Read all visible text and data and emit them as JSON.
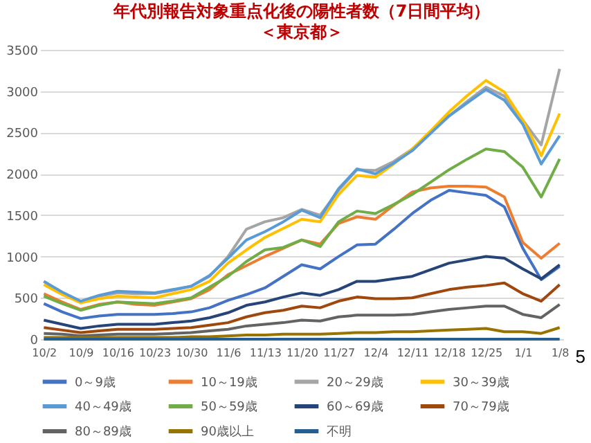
{
  "chart_data": {
    "type": "line",
    "title": "年代別報告対象重点化後の陽性者数（7日間平均）",
    "subtitle": "＜東京都＞",
    "categories": [
      "10/2",
      null,
      "10/9",
      null,
      "10/16",
      null,
      "10/23",
      null,
      "10/30",
      null,
      "11/6",
      null,
      "11/13",
      null,
      "11/20",
      null,
      "11/27",
      null,
      "12/4",
      null,
      "12/11",
      null,
      "12/18",
      null,
      "12/25",
      null,
      "1/1",
      null,
      "1/8"
    ],
    "ylim": [
      0,
      3500
    ],
    "yticks": [
      0,
      500,
      1000,
      1500,
      2000,
      2500,
      3000,
      3500
    ],
    "grid": "y",
    "legend": "bottom",
    "marker": "none",
    "line_style": "solid",
    "annotations": [
      "5"
    ],
    "series": [
      {
        "name": "0～9歳",
        "color": "#4472c4",
        "values": [
          430,
          330,
          250,
          280,
          300,
          300,
          300,
          310,
          330,
          380,
          470,
          540,
          620,
          760,
          900,
          850,
          1000,
          1140,
          1150,
          1330,
          1520,
          1680,
          1800,
          1770,
          1740,
          1600,
          1100,
          720,
          880
        ]
      },
      {
        "name": "10～19歳",
        "color": "#ed7d31",
        "values": [
          550,
          450,
          360,
          420,
          450,
          420,
          410,
          450,
          490,
          600,
          780,
          890,
          1000,
          1100,
          1200,
          1150,
          1400,
          1480,
          1450,
          1620,
          1780,
          1830,
          1850,
          1850,
          1840,
          1720,
          1170,
          980,
          1160
        ]
      },
      {
        "name": "20～29歳",
        "color": "#a5a5a5",
        "values": [
          700,
          560,
          450,
          520,
          560,
          550,
          550,
          590,
          640,
          760,
          1000,
          1330,
          1420,
          1470,
          1570,
          1500,
          1800,
          2050,
          2040,
          2150,
          2300,
          2500,
          2700,
          2880,
          3050,
          2940,
          2650,
          2350,
          3270
        ]
      },
      {
        "name": "30～39歳",
        "color": "#ffc000",
        "values": [
          660,
          540,
          440,
          490,
          520,
          510,
          500,
          550,
          600,
          700,
          920,
          1080,
          1230,
          1340,
          1450,
          1420,
          1750,
          1980,
          1960,
          2120,
          2300,
          2520,
          2750,
          2950,
          3130,
          2990,
          2650,
          2220,
          2730
        ]
      },
      {
        "name": "40～49歳",
        "color": "#5b9bd5",
        "values": [
          700,
          570,
          460,
          530,
          580,
          570,
          560,
          600,
          640,
          770,
          980,
          1200,
          1300,
          1420,
          1560,
          1470,
          1820,
          2060,
          2000,
          2130,
          2280,
          2490,
          2700,
          2860,
          3020,
          2890,
          2600,
          2120,
          2460
        ]
      },
      {
        "name": "50～59歳",
        "color": "#70ad47",
        "values": [
          520,
          430,
          350,
          410,
          450,
          440,
          430,
          460,
          500,
          630,
          760,
          940,
          1080,
          1110,
          1200,
          1120,
          1420,
          1550,
          1520,
          1630,
          1750,
          1900,
          2050,
          2180,
          2300,
          2270,
          2080,
          1720,
          2180
        ]
      },
      {
        "name": "60～69歳",
        "color": "#264478",
        "values": [
          230,
          180,
          130,
          160,
          180,
          180,
          180,
          200,
          220,
          260,
          320,
          410,
          450,
          510,
          560,
          530,
          600,
          700,
          700,
          730,
          760,
          840,
          920,
          960,
          1000,
          980,
          850,
          730,
          900
        ]
      },
      {
        "name": "70～79歳",
        "color": "#9e480e",
        "values": [
          140,
          110,
          80,
          100,
          120,
          120,
          120,
          130,
          140,
          170,
          200,
          270,
          320,
          350,
          400,
          380,
          460,
          510,
          490,
          490,
          500,
          550,
          600,
          630,
          650,
          680,
          550,
          460,
          660
        ]
      },
      {
        "name": "80～89歳",
        "color": "#636363",
        "values": [
          70,
          60,
          40,
          50,
          60,
          60,
          60,
          70,
          80,
          100,
          120,
          160,
          180,
          200,
          230,
          220,
          270,
          290,
          290,
          290,
          300,
          330,
          360,
          380,
          400,
          400,
          300,
          260,
          420
        ]
      },
      {
        "name": "90歳以上",
        "color": "#997300",
        "values": [
          20,
          20,
          20,
          20,
          20,
          20,
          20,
          20,
          30,
          30,
          40,
          50,
          50,
          60,
          60,
          60,
          70,
          80,
          80,
          90,
          90,
          100,
          110,
          120,
          130,
          90,
          90,
          70,
          140
        ]
      },
      {
        "name": "不明",
        "color": "#255e91",
        "values": [
          0,
          0,
          0,
          0,
          0,
          0,
          0,
          0,
          0,
          0,
          0,
          0,
          0,
          0,
          0,
          0,
          0,
          0,
          0,
          0,
          0,
          0,
          0,
          0,
          0,
          0,
          0,
          0,
          0
        ]
      }
    ]
  }
}
